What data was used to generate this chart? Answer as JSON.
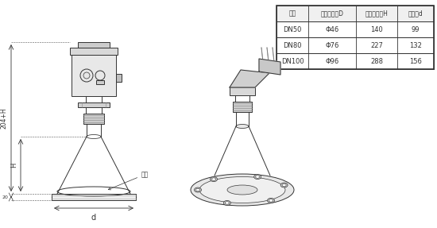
{
  "bg_color": "#ffffff",
  "line_color": "#333333",
  "table_header": [
    "法兰",
    "喇叭口直径D",
    "喇叭口高度H",
    "四氟盘d"
  ],
  "table_rows": [
    [
      "DN50",
      "Φ46",
      "140",
      "99"
    ],
    [
      "DN80",
      "Φ76",
      "227",
      "132"
    ],
    [
      "DN100",
      "Φ96",
      "288",
      "156"
    ]
  ],
  "dim_label_204H": "204+H",
  "dim_label_H": "H",
  "dim_label_20": "20",
  "dim_label_d": "d",
  "dim_label_flange": "法兰"
}
